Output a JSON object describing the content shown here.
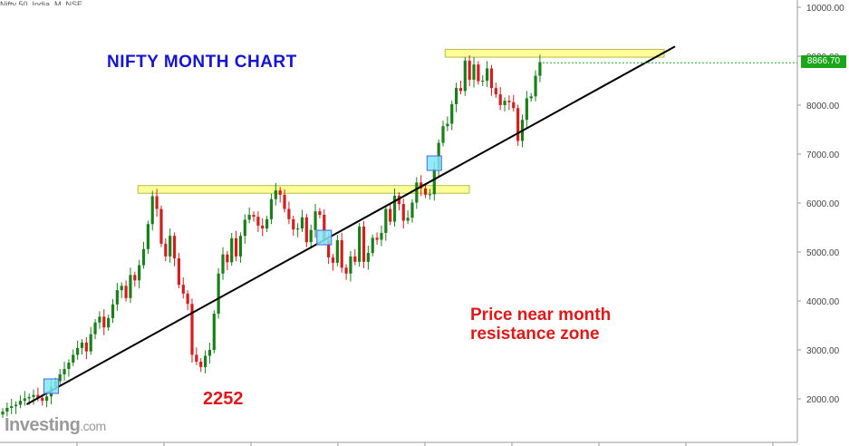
{
  "header_text": "Nifty 50, India, M, NSE",
  "annotations": {
    "title": "NIFTY MONTH CHART",
    "note_line1": "Price near month",
    "note_line2": "resistance zone",
    "low_value": "2252"
  },
  "brand": {
    "name": "Investing",
    "suffix": ".com"
  },
  "last_price": "8866.70",
  "colors": {
    "up": "#1a7f1a",
    "down": "#d21e1e",
    "zone": "#ffff99",
    "trendline": "#000000",
    "last_price_bg": "#1aa51a",
    "title": "#1414d2",
    "note": "#e01818"
  },
  "chart_data": {
    "type": "candlestick",
    "interval": "monthly",
    "y_axis": {
      "ticks": [
        "10000.00",
        "9000.00",
        "8000.00",
        "7000.00",
        "6000.00",
        "5000.00",
        "4000.00",
        "3000.00",
        "2000.00"
      ],
      "tick_values": [
        10000,
        9000,
        8000,
        7000,
        6000,
        5000,
        4000,
        3000,
        2000
      ],
      "range": [
        1100,
        10300
      ],
      "position": "right"
    },
    "grid": false,
    "series": [
      {
        "close": [
          1740,
          1815,
          1850,
          1880,
          1960,
          2010,
          2040,
          2080,
          2020,
          1960,
          2050,
          2250,
          2360,
          2500,
          2610,
          2740,
          2900,
          3040,
          3150,
          2970,
          3320,
          3560,
          3680,
          3460,
          3650,
          3930,
          4220,
          4310,
          4060,
          4530,
          4420,
          4730,
          5060,
          5570,
          6140,
          5880,
          5170,
          4910,
          5330,
          4870,
          4330,
          4150,
          3940,
          2900,
          2760,
          2650,
          2880,
          3000,
          3740,
          4560,
          4950,
          4790,
          5280,
          4910,
          5330,
          5660,
          5760,
          5720,
          5540,
          5480,
          5670,
          6080,
          6260,
          6170,
          5880,
          5670,
          5460,
          5480,
          5710,
          5200,
          5450,
          5830,
          5760,
          5250,
          4890,
          4780,
          5240,
          4680,
          4560,
          4910,
          4800,
          5520,
          4800,
          4980,
          5290,
          5250,
          5390,
          5880,
          5620,
          6150,
          5980,
          5640,
          5700,
          6010,
          6420,
          6300,
          6170,
          6180,
          6700,
          7230,
          7570,
          7620,
          8020,
          8350,
          8290,
          8910,
          8520,
          8830,
          8490,
          8500,
          8750,
          8350,
          8220,
          8000,
          8090,
          8060,
          7940,
          7270,
          7700,
          8140,
          8180,
          8600,
          8880
        ]
      }
    ],
    "resistance_zones": [
      {
        "from_value": 6200,
        "to_value": 6357
      },
      {
        "from_value": 8980,
        "to_value": 9140
      }
    ],
    "trendline": {
      "from": [
        2252,
        1890
      ],
      "to": [
        9080,
        9180
      ]
    },
    "touch_points": [
      2252,
      5250,
      6800
    ]
  }
}
